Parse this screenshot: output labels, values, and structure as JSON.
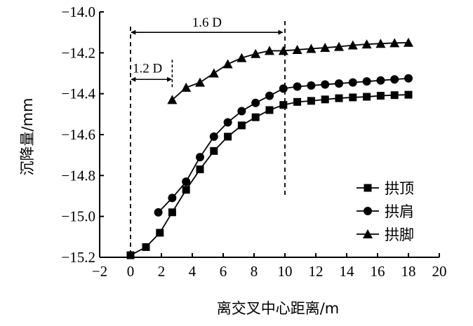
{
  "chart_data": {
    "type": "line",
    "xlabel": "离交叉中心距离/m",
    "ylabel": "沉降量/mm",
    "xlim": [
      -2,
      20
    ],
    "ylim": [
      -15.2,
      -14.0
    ],
    "xticks": [
      -2,
      0,
      2,
      4,
      6,
      8,
      10,
      12,
      14,
      16,
      18,
      20
    ],
    "xtick_labels": [
      "−2",
      "0",
      "2",
      "4",
      "6",
      "8",
      "10",
      "12",
      "14",
      "16",
      "18",
      "20"
    ],
    "yticks": [
      -15.2,
      -15.0,
      -14.8,
      -14.6,
      -14.4,
      -14.2,
      -14.0
    ],
    "ytick_labels": [
      "−15.2",
      "−15.0",
      "−14.8",
      "−14.6",
      "−14.4",
      "−14.2",
      "−14.0"
    ],
    "grid": false,
    "legend_position": "right",
    "series": [
      {
        "name": "拱顶",
        "marker": "square",
        "x": [
          0,
          1,
          1.9,
          2.7,
          3.6,
          4.5,
          5.4,
          6.3,
          7.2,
          8.1,
          9,
          9.9,
          10.8,
          11.7,
          12.6,
          13.5,
          14.4,
          15.3,
          16.2,
          17.1,
          18
        ],
        "y": [
          -15.19,
          -15.15,
          -15.08,
          -14.98,
          -14.87,
          -14.77,
          -14.68,
          -14.61,
          -14.555,
          -14.515,
          -14.48,
          -14.455,
          -14.44,
          -14.435,
          -14.428,
          -14.422,
          -14.418,
          -14.415,
          -14.41,
          -14.407,
          -14.405
        ]
      },
      {
        "name": "拱肩",
        "marker": "circle",
        "x": [
          1.8,
          2.7,
          3.6,
          4.5,
          5.4,
          6.3,
          7.2,
          8.1,
          9,
          9.9,
          10.8,
          11.7,
          12.6,
          13.5,
          14.4,
          15.3,
          16.2,
          17.1,
          18
        ],
        "y": [
          -14.98,
          -14.91,
          -14.83,
          -14.71,
          -14.61,
          -14.54,
          -14.485,
          -14.445,
          -14.41,
          -14.375,
          -14.365,
          -14.36,
          -14.355,
          -14.35,
          -14.345,
          -14.34,
          -14.335,
          -14.33,
          -14.325
        ]
      },
      {
        "name": "拱脚",
        "marker": "triangle",
        "x": [
          2.7,
          3.6,
          4.5,
          5.4,
          6.3,
          7.2,
          8.1,
          9,
          9.9,
          10.8,
          11.7,
          12.6,
          13.5,
          14.4,
          15.3,
          16.2,
          17.1,
          18
        ],
        "y": [
          -14.43,
          -14.37,
          -14.345,
          -14.3,
          -14.255,
          -14.225,
          -14.205,
          -14.19,
          -14.19,
          -14.185,
          -14.18,
          -14.175,
          -14.17,
          -14.163,
          -14.158,
          -14.155,
          -14.152,
          -14.15
        ]
      }
    ],
    "reference_lines": [
      {
        "x": 0,
        "style": "dashed"
      },
      {
        "x": 10,
        "style": "dashed"
      }
    ],
    "annotations": [
      {
        "label": "1.6 D",
        "from_x": 0,
        "to_x": 9.9,
        "at_y": -14.1
      },
      {
        "label": "1.2 D",
        "from_x": 0,
        "to_x": 2.7,
        "at_y": -14.33
      }
    ]
  }
}
